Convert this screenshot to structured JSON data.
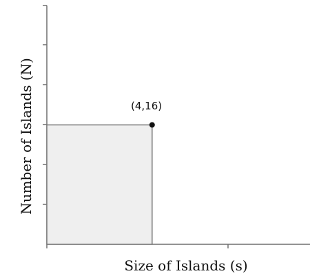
{
  "chart_data": {
    "type": "bar",
    "xlabel": "Size of Islands (s)",
    "ylabel": "Number of Islands (N)",
    "xlim": [
      0,
      10
    ],
    "ylim": [
      0,
      32
    ],
    "categories": [
      "4"
    ],
    "values": [
      16
    ],
    "point": {
      "x": 4,
      "y": 16,
      "label": "(4,16)"
    },
    "grid": false
  }
}
